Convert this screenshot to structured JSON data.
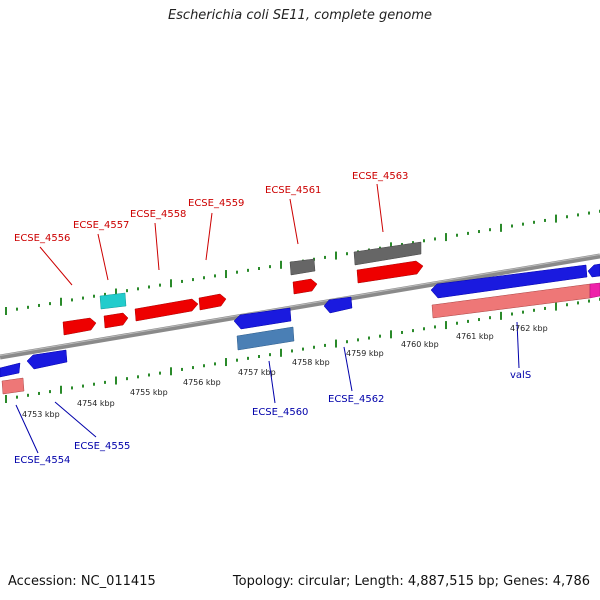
{
  "title": "Escherichia coli SE11, complete genome",
  "footer": {
    "accession": "Accession: NC_011415",
    "topology": "Topology: circular; Length: 4,887,515 bp; Genes: 4,786"
  },
  "kbp_labels": [
    "4753 kbp",
    "4754 kbp",
    "4755 kbp",
    "4756 kbp",
    "4757 kbp",
    "4758 kbp",
    "4759 kbp",
    "4760 kbp",
    "4761 kbp",
    "4762 kbp"
  ],
  "genes_forward": [
    "ECSE_4556",
    "ECSE_4557",
    "ECSE_4558",
    "ECSE_4559",
    "ECSE_4561",
    "ECSE_4563"
  ],
  "genes_reverse": [
    "ECSE_4554",
    "ECSE_4555",
    "ECSE_4560",
    "ECSE_4562",
    "valS"
  ],
  "colors": {
    "forward_cds": "#ee0000",
    "reverse_cds": "#1a1adf",
    "rna_gray": "#666666",
    "cyan": "#22cccc",
    "steelblue": "#4a7fb5",
    "pink": "#ee7777",
    "magenta": "#ee22aa",
    "backbone": "#888888",
    "tick": "#2a8a2a"
  }
}
